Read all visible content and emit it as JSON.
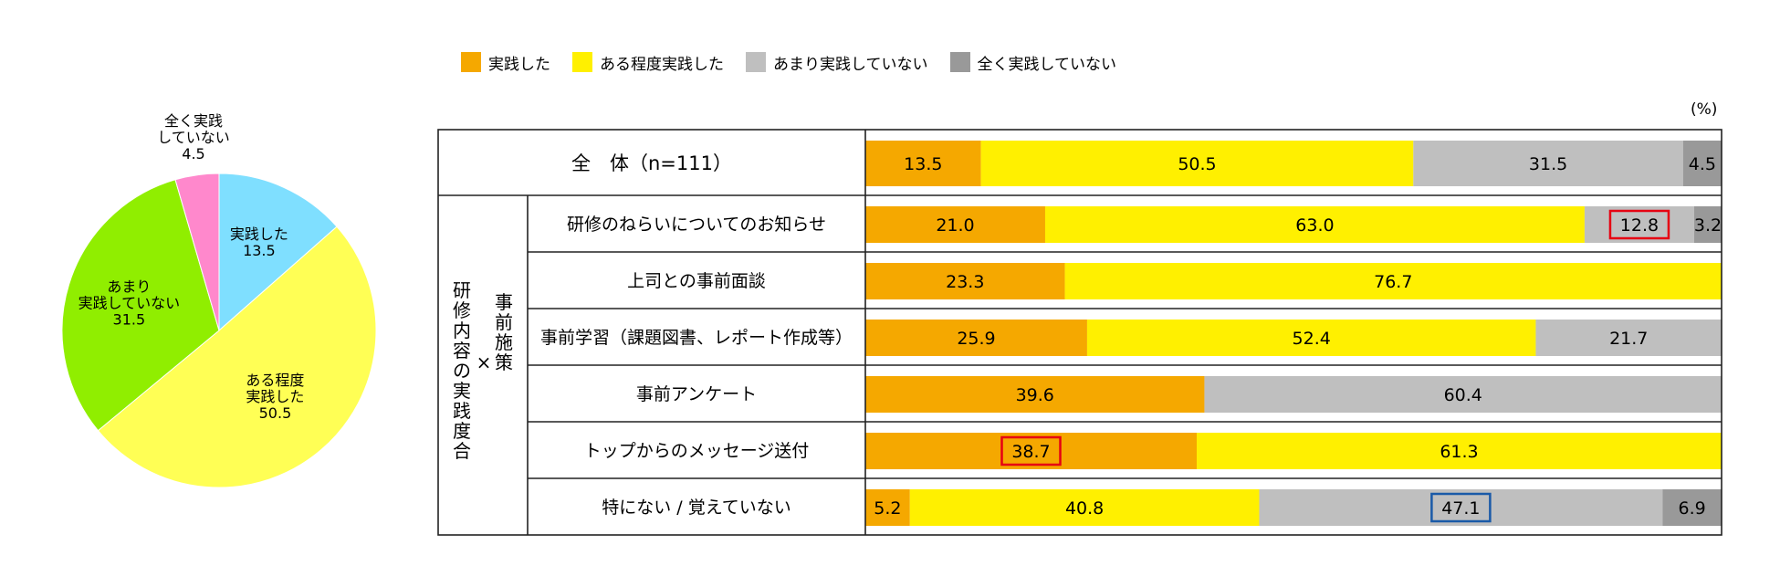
{
  "colors": {
    "実践した": "#f5a800",
    "ある程度実践した": "#fff000",
    "あまり実践していない": "#bfbfbf",
    "全く実践していない": "#999999"
  },
  "legend": [
    {
      "label": "実践した",
      "color": "#f5a800"
    },
    {
      "label": "ある程度実践した",
      "color": "#fff000"
    },
    {
      "label": "あまり実践していない",
      "color": "#bfbfbf"
    },
    {
      "label": "全く実践していない",
      "color": "#999999"
    }
  ],
  "unit": "(%)",
  "group_label": {
    "outer": "研修内容の実践度合",
    "cross": "×",
    "inner": "事前施策"
  },
  "chart_data": [
    {
      "type": "pie",
      "slices": [
        {
          "name": "実践した",
          "value": 13.5,
          "label_lines": [
            "実践した",
            "13.5"
          ],
          "color": "#7fdfff"
        },
        {
          "name": "ある程度実践した",
          "value": 50.5,
          "label_lines": [
            "ある程度",
            "実践した",
            "50.5"
          ],
          "color": "#ffff55"
        },
        {
          "name": "あまり実践していない",
          "value": 31.5,
          "label_lines": [
            "あまり",
            "実践していない",
            "31.5"
          ],
          "color": "#90ee00"
        },
        {
          "name": "全く実践していない",
          "value": 4.5,
          "label_lines": [
            "全く実践",
            "していない",
            "4.5"
          ],
          "color": "#ff88cc"
        }
      ]
    },
    {
      "type": "bar",
      "orientation": "horizontal",
      "stacked": true,
      "xlim": [
        0,
        100
      ],
      "series_names": [
        "実践した",
        "ある程度実践した",
        "あまり実践していない",
        "全く実践していない"
      ],
      "total": {
        "label": "全　体（n=111）",
        "values": [
          13.5,
          50.5,
          31.5,
          4.5
        ]
      },
      "rows": [
        {
          "label": "研修のねらいについてのお知らせ",
          "values": [
            21.0,
            63.0,
            12.8,
            3.2
          ],
          "highlight": {
            "series": 2,
            "color": "#e60012"
          }
        },
        {
          "label": "上司との事前面談",
          "values": [
            23.3,
            76.7,
            0,
            0
          ]
        },
        {
          "label": "事前学習（課題図書、レポート作成等）",
          "values": [
            25.9,
            52.4,
            21.7,
            0
          ]
        },
        {
          "label": "事前アンケート",
          "values": [
            39.6,
            0,
            60.4,
            0
          ]
        },
        {
          "label": "トップからのメッセージ送付",
          "values": [
            38.7,
            61.3,
            0,
            0
          ],
          "highlight": {
            "series": 0,
            "color": "#e60012"
          }
        },
        {
          "label": "特にない / 覚えていない",
          "values": [
            5.2,
            40.8,
            47.1,
            6.9
          ],
          "highlight": {
            "series": 2,
            "color": "#1a5aa8"
          }
        }
      ]
    }
  ]
}
